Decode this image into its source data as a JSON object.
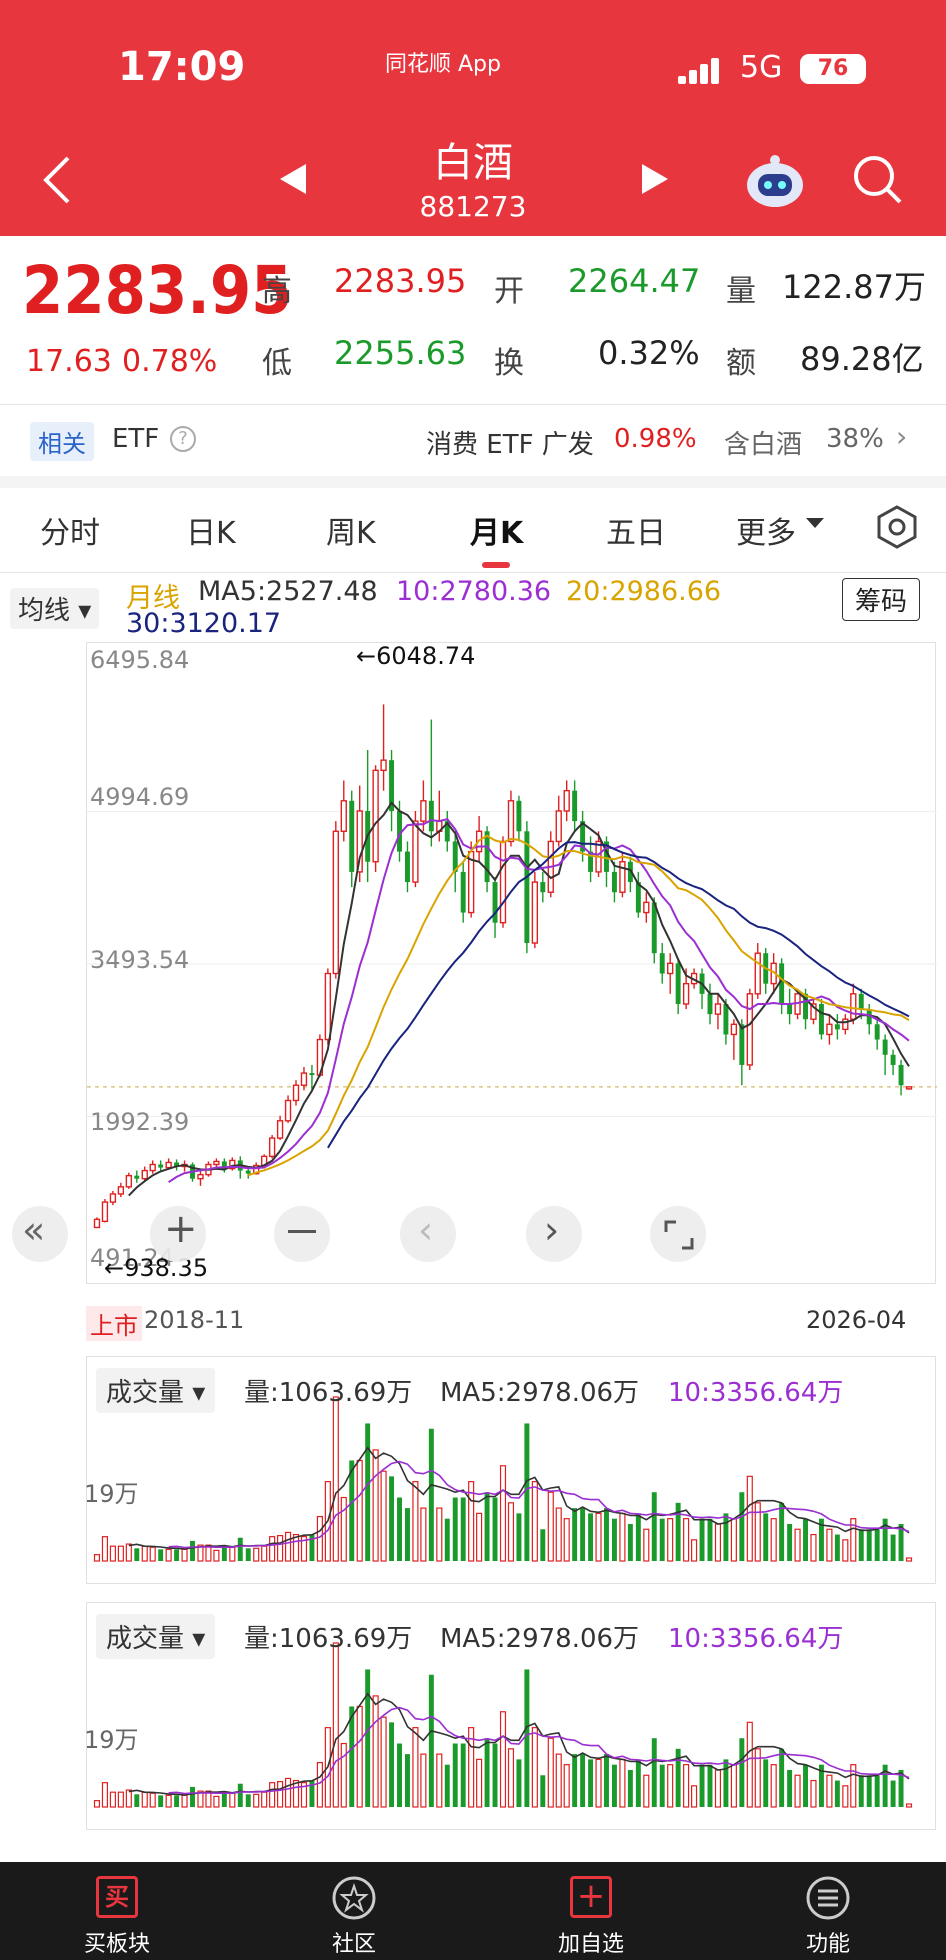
{
  "status": {
    "time": "17:09",
    "app": "同花顺 App",
    "network": "5G",
    "battery": "76"
  },
  "header": {
    "title": "白酒",
    "code": "881273"
  },
  "quote": {
    "price": "2283.95",
    "change": "17.63",
    "change_pct": "0.78%",
    "high_label": "高",
    "high": "2283.95",
    "open_label": "开",
    "open": "2264.47",
    "vol_label": "量",
    "vol": "122.87万",
    "low_label": "低",
    "low": "2255.63",
    "turn_label": "换",
    "turn": "0.32%",
    "amt_label": "额",
    "amt": "89.28亿"
  },
  "etf": {
    "tag": "相关",
    "label": "ETF",
    "name": "消费 ETF 广发",
    "pct": "0.98%",
    "hold": "含白酒",
    "hold_pct": "38%"
  },
  "tabs": [
    "分时",
    "日K",
    "周K",
    "月K",
    "五日",
    "更多"
  ],
  "active_tab": "月K",
  "ma": {
    "selector": "均线",
    "type": "月线",
    "ma5": "MA5:2527.48",
    "ma10": "10:2780.36",
    "ma20": "20:2986.66",
    "ma30": "30:3120.17",
    "chip_button": "筹码"
  },
  "chart": {
    "y_labels": [
      "6495.84",
      "4994.69",
      "3493.54",
      "1992.39",
      "491.24"
    ],
    "high_mark": "←6048.74",
    "low_mark": "←938.35",
    "start_tag": "上市",
    "start_date": "2018-11",
    "end_date": "2026-04"
  },
  "vol_panels": [
    {
      "selector": "成交量",
      "vol": "量:1063.69万",
      "ma5": "MA5:2978.06万",
      "ma10": "10:3356.64万",
      "axis": "19万"
    },
    {
      "selector": "成交量",
      "vol": "量:1063.69万",
      "ma5": "MA5:2978.06万",
      "ma10": "10:3356.64万",
      "axis": "19万"
    }
  ],
  "nav": [
    "买板块",
    "社区",
    "加自选",
    "功能"
  ],
  "colors": {
    "brand": "#e8363f",
    "up": "#e02020",
    "down": "#1a9a2a",
    "ma5": "#333333",
    "ma10": "#9b2fd1",
    "ma20": "#d9a400",
    "ma30": "#1a237e"
  },
  "chart_data": {
    "type": "candlestick",
    "ohlc": [
      [
        900,
        980,
        940,
        1000
      ],
      [
        960,
        1150,
        950,
        1180
      ],
      [
        1150,
        1230,
        1120,
        1260
      ],
      [
        1230,
        1300,
        1200,
        1340
      ],
      [
        1300,
        1410,
        1280,
        1440
      ],
      [
        1410,
        1380,
        1340,
        1460
      ],
      [
        1380,
        1460,
        1360,
        1500
      ],
      [
        1460,
        1520,
        1430,
        1560
      ],
      [
        1520,
        1490,
        1450,
        1560
      ],
      [
        1490,
        1540,
        1470,
        1580
      ],
      [
        1540,
        1500,
        1460,
        1570
      ],
      [
        1500,
        1520,
        1450,
        1560
      ],
      [
        1520,
        1380,
        1350,
        1540
      ],
      [
        1380,
        1420,
        1310,
        1460
      ],
      [
        1420,
        1520,
        1400,
        1550
      ],
      [
        1520,
        1550,
        1480,
        1580
      ],
      [
        1550,
        1480,
        1440,
        1580
      ],
      [
        1480,
        1560,
        1460,
        1590
      ],
      [
        1560,
        1460,
        1380,
        1600
      ],
      [
        1460,
        1430,
        1380,
        1500
      ],
      [
        1430,
        1510,
        1420,
        1540
      ],
      [
        1510,
        1600,
        1480,
        1620
      ],
      [
        1600,
        1780,
        1580,
        1810
      ],
      [
        1780,
        1950,
        1760,
        2000
      ],
      [
        1950,
        2150,
        1930,
        2200
      ],
      [
        2150,
        2300,
        2100,
        2350
      ],
      [
        2300,
        2420,
        2250,
        2480
      ],
      [
        2420,
        2400,
        2250,
        2500
      ],
      [
        2400,
        2750,
        2380,
        2800
      ],
      [
        2750,
        3400,
        2700,
        3450
      ],
      [
        3400,
        4800,
        3350,
        4900
      ],
      [
        4800,
        5100,
        4700,
        5300
      ],
      [
        5100,
        4400,
        4250,
        5200
      ],
      [
        4400,
        5000,
        4300,
        5250
      ],
      [
        5000,
        4500,
        4300,
        5600
      ],
      [
        4500,
        5400,
        4400,
        5450
      ],
      [
        5400,
        5500,
        5200,
        6048.74
      ],
      [
        5500,
        5000,
        4800,
        5600
      ],
      [
        5000,
        4600,
        4500,
        5100
      ],
      [
        4600,
        4300,
        4200,
        4700
      ],
      [
        4300,
        4900,
        4250,
        5000
      ],
      [
        4900,
        5100,
        4800,
        5300
      ],
      [
        5100,
        4800,
        4650,
        5900
      ],
      [
        4800,
        4900,
        4700,
        5200
      ],
      [
        4900,
        4700,
        4600,
        5000
      ],
      [
        4700,
        4400,
        4200,
        4800
      ],
      [
        4400,
        4000,
        3900,
        4500
      ],
      [
        4000,
        4600,
        3950,
        4700
      ],
      [
        4600,
        4800,
        4500,
        4950
      ],
      [
        4800,
        4300,
        4200,
        4850
      ],
      [
        4300,
        3900,
        3750,
        4350
      ],
      [
        3900,
        4700,
        3850,
        4750
      ],
      [
        4700,
        5100,
        4650,
        5200
      ],
      [
        5100,
        4800,
        4700,
        5150
      ],
      [
        4800,
        3700,
        3600,
        4900
      ],
      [
        3700,
        4300,
        3650,
        4400
      ],
      [
        4300,
        4200,
        4100,
        4400
      ],
      [
        4200,
        4700,
        4150,
        4800
      ],
      [
        4700,
        5000,
        4650,
        5150
      ],
      [
        5000,
        5200,
        4900,
        5300
      ],
      [
        5200,
        4900,
        4800,
        5300
      ],
      [
        4900,
        4600,
        4500,
        5000
      ],
      [
        4600,
        4400,
        4300,
        4750
      ],
      [
        4400,
        4700,
        4350,
        4800
      ],
      [
        4700,
        4400,
        4250,
        4750
      ],
      [
        4400,
        4200,
        4100,
        4500
      ],
      [
        4200,
        4500,
        4150,
        4600
      ],
      [
        4500,
        4300,
        4200,
        4550
      ],
      [
        4300,
        4000,
        3950,
        4400
      ],
      [
        4000,
        4100,
        3900,
        4200
      ],
      [
        4100,
        3600,
        3500,
        4150
      ],
      [
        3600,
        3400,
        3300,
        3700
      ],
      [
        3400,
        3500,
        3200,
        3600
      ],
      [
        3500,
        3100,
        3000,
        3550
      ],
      [
        3100,
        3300,
        3050,
        3450
      ],
      [
        3300,
        3400,
        3250,
        3450
      ],
      [
        3400,
        3200,
        3050,
        3450
      ],
      [
        3200,
        3000,
        2900,
        3300
      ],
      [
        3000,
        3100,
        2850,
        3200
      ],
      [
        3100,
        2800,
        2700,
        3150
      ],
      [
        2800,
        2900,
        2550,
        2950
      ],
      [
        2900,
        2500,
        2300,
        2950
      ],
      [
        2500,
        3200,
        2450,
        3250
      ],
      [
        3200,
        3600,
        3150,
        3700
      ],
      [
        3600,
        3300,
        3200,
        3650
      ],
      [
        3300,
        3500,
        3200,
        3600
      ],
      [
        3500,
        3100,
        3000,
        3550
      ],
      [
        3100,
        3000,
        2900,
        3250
      ],
      [
        3000,
        3200,
        2950,
        3250
      ],
      [
        3200,
        2950,
        2850,
        3250
      ],
      [
        2950,
        3100,
        2900,
        3150
      ],
      [
        3100,
        2800,
        2750,
        3150
      ],
      [
        2800,
        2900,
        2700,
        3000
      ],
      [
        2900,
        2850,
        2750,
        3000
      ],
      [
        2850,
        2950,
        2800,
        3000
      ],
      [
        2950,
        3200,
        2900,
        3300
      ],
      [
        3200,
        3050,
        2950,
        3250
      ],
      [
        3050,
        2900,
        2800,
        3100
      ],
      [
        2900,
        2750,
        2650,
        2950
      ],
      [
        2750,
        2600,
        2400,
        2800
      ],
      [
        2600,
        2500,
        2400,
        2650
      ],
      [
        2500,
        2300,
        2200,
        2550
      ],
      [
        2264.47,
        2283.95,
        2255.63,
        2283.95
      ]
    ],
    "ylim": [
      491.24,
      6495.84
    ],
    "series": [
      {
        "name": "MA5",
        "value": 2527.48
      },
      {
        "name": "MA10",
        "value": 2780.36
      },
      {
        "name": "MA20",
        "value": 2986.66
      },
      {
        "name": "MA30",
        "value": 3120.17
      }
    ]
  }
}
